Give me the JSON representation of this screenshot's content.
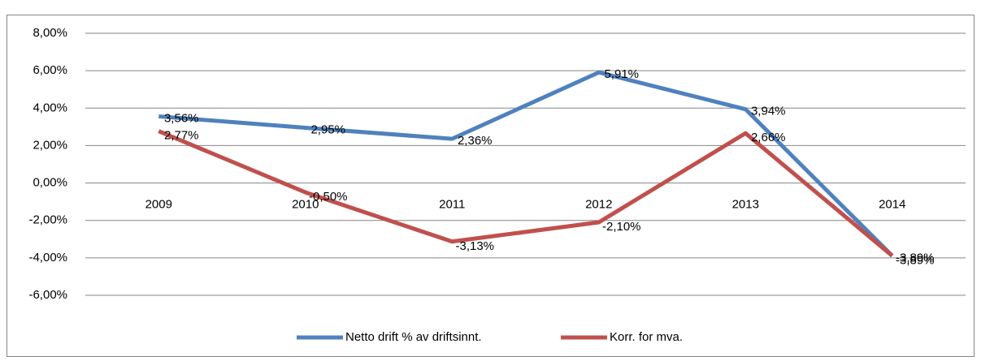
{
  "chart_data": {
    "type": "line",
    "categories": [
      "2009",
      "2010",
      "2011",
      "2012",
      "2013",
      "2014"
    ],
    "series": [
      {
        "name": "Netto drift % av driftsinnt.",
        "color": "#4f81bd",
        "values": [
          3.56,
          2.95,
          2.36,
          5.91,
          3.94,
          -3.89
        ],
        "value_labels": [
          "3,56%",
          "2,95%",
          "2,36%",
          "5,91%",
          "3,94%",
          "-3,89%"
        ]
      },
      {
        "name": "Korr. for mva.",
        "color": "#c0504d",
        "values": [
          2.77,
          -0.5,
          -3.13,
          -2.1,
          2.66,
          -3.89
        ],
        "value_labels": [
          "2,77%",
          "-0,50%",
          "-3,13%",
          "-2,10%",
          "2,66%",
          "-3,89%"
        ]
      }
    ],
    "ylim": [
      -6,
      8
    ],
    "yticks": [
      {
        "value": -6,
        "label": "-6,00%"
      },
      {
        "value": -4,
        "label": "-4,00%"
      },
      {
        "value": -2,
        "label": "-2,00%"
      },
      {
        "value": 0,
        "label": "0,00%"
      },
      {
        "value": 2,
        "label": "2,00%"
      },
      {
        "value": 4,
        "label": "4,00%"
      },
      {
        "value": 6,
        "label": "6,00%"
      },
      {
        "value": 8,
        "label": "8,00%"
      }
    ],
    "grid": true,
    "legend": "bottom"
  }
}
